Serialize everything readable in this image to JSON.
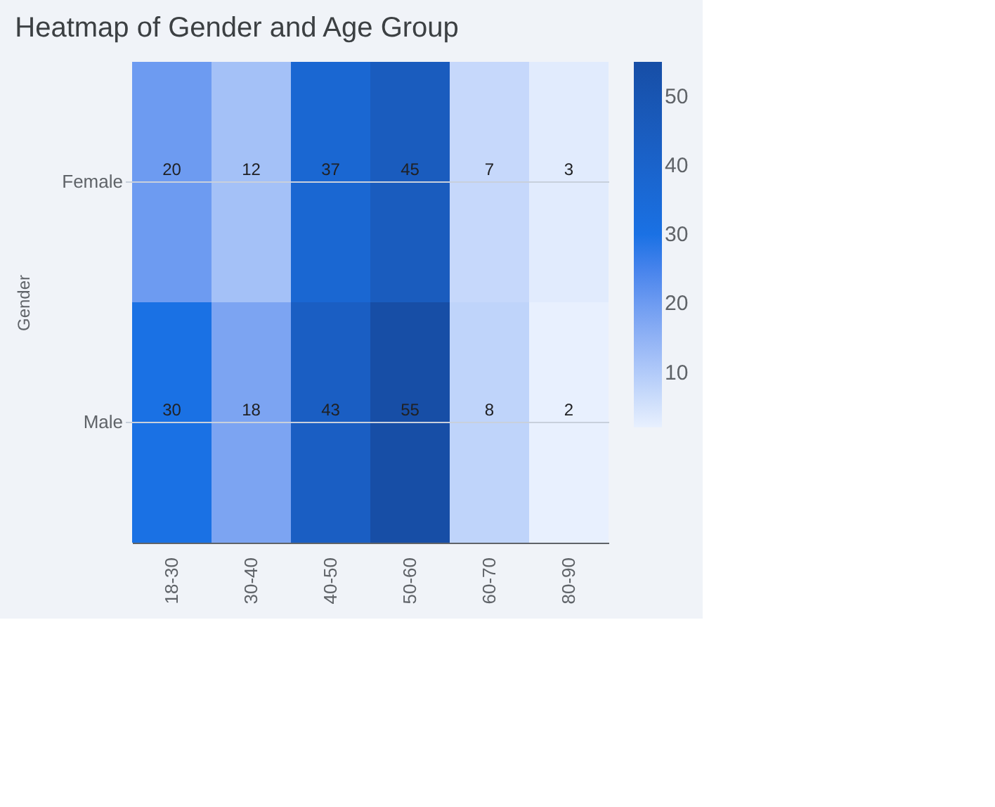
{
  "chart_data": {
    "type": "heatmap",
    "title": "Heatmap of Gender and Age Group",
    "ylabel": "Gender",
    "categories": [
      "18-30",
      "30-40",
      "40-50",
      "50-60",
      "60-70",
      "80-90"
    ],
    "y_categories": [
      "Female",
      "Male"
    ],
    "cells": [
      [
        20,
        12,
        37,
        45,
        7,
        3
      ],
      [
        30,
        18,
        43,
        55,
        8,
        2
      ]
    ],
    "data_labels": true,
    "colors": [
      "#e8f0fe",
      "#1a73e8",
      "#174ea6"
    ],
    "clim": [
      2,
      55
    ],
    "cticks": [
      10,
      20,
      30,
      40,
      50
    ],
    "grid": "y"
  }
}
